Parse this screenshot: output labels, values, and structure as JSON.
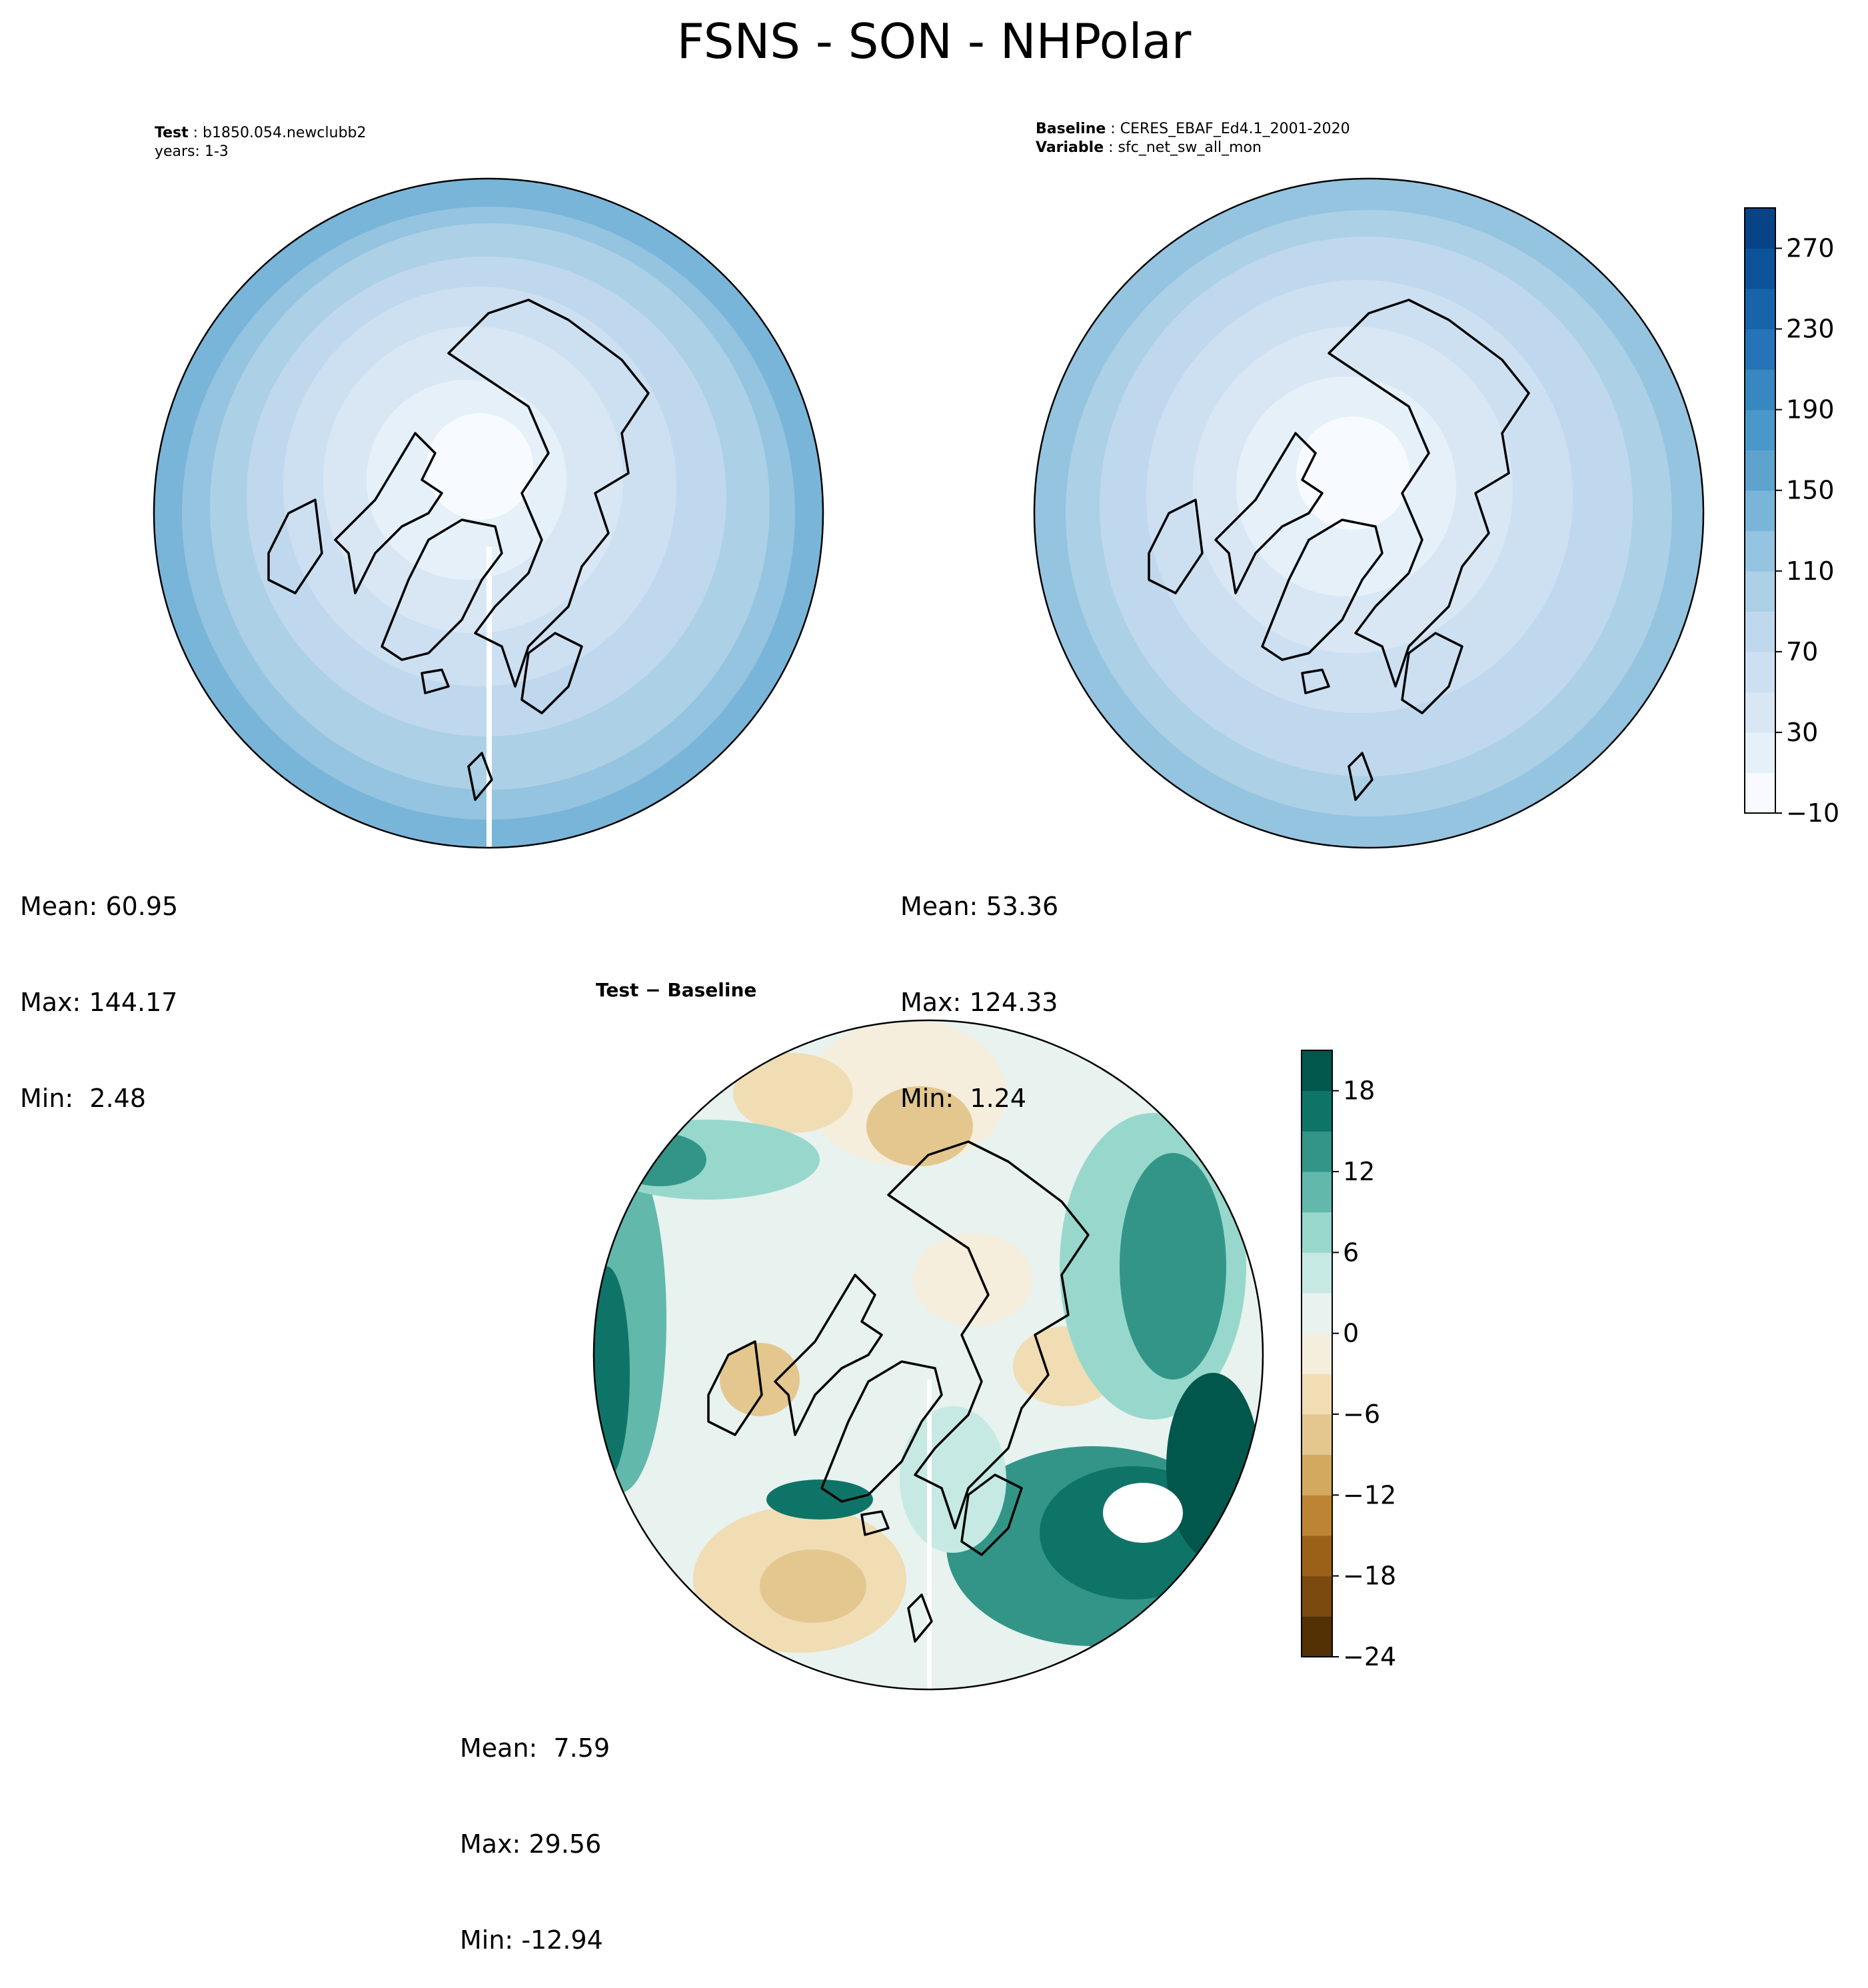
{
  "figure": {
    "title": "FSNS - SON - NHPolar"
  },
  "panels": {
    "test": {
      "header_label": "Test",
      "header_value": "b1850.054.newclubb2",
      "header_line2": "years: 1-3",
      "stats": {
        "mean_label": "Mean:",
        "mean": "60.95",
        "max_label": "Max:",
        "max": "144.17",
        "min_label": "Min:",
        "min": " 2.48"
      }
    },
    "baseline": {
      "header_label": "Baseline",
      "header_value": "CERES_EBAF_Ed4.1_2001-2020",
      "header_label2": "Variable",
      "header_value2": "sfc_net_sw_all_mon",
      "stats": {
        "mean_label": "Mean:",
        "mean": "53.36",
        "max_label": "Max:",
        "max": "124.33",
        "min_label": "Min:",
        "min": " 1.24"
      }
    },
    "diff": {
      "header_label": "Test − Baseline",
      "stats": {
        "mean_label": "Mean:",
        "mean": " 7.59",
        "max_label": "Max:",
        "max": "29.56",
        "min_label": "Min:",
        "min": "-12.94"
      }
    }
  },
  "colorbars": {
    "main": {
      "colormap": "Blues",
      "levels": [
        -10,
        10,
        30,
        50,
        70,
        90,
        110,
        130,
        150,
        170,
        190,
        210,
        230,
        250,
        270,
        290
      ],
      "tick_labels": [
        "−10",
        "30",
        "70",
        "110",
        "150",
        "190",
        "230",
        "270"
      ],
      "colors": [
        "#f7fbff",
        "#e6f0f9",
        "#d9e7f5",
        "#cde0f2",
        "#bfd8ed",
        "#acd0e6",
        "#94c4df",
        "#79b5d9",
        "#5ea3ce",
        "#4a97c9",
        "#3787c0",
        "#2474b7",
        "#1764ab",
        "#0d539a",
        "#084387"
      ]
    },
    "diff": {
      "colormap": "BrBG",
      "levels": [
        -24,
        -21,
        -18,
        -15,
        -12,
        -9,
        -6,
        -3,
        0,
        3,
        6,
        9,
        12,
        15,
        18,
        21
      ],
      "tick_labels": [
        "−24",
        "−18",
        "−12",
        "−6",
        "0",
        "6",
        "12",
        "18"
      ],
      "colors": [
        "#543005",
        "#7b4a0e",
        "#9c6118",
        "#bd8433",
        "#d3a85f",
        "#e3c78f",
        "#f0ddb4",
        "#f5eedd",
        "#e8f2ef",
        "#c6e9e3",
        "#98d8cc",
        "#62b8ab",
        "#329588",
        "#0f7468",
        "#01574b"
      ]
    }
  },
  "map_colors": {
    "coast": "#000000",
    "frame": "#000000"
  }
}
